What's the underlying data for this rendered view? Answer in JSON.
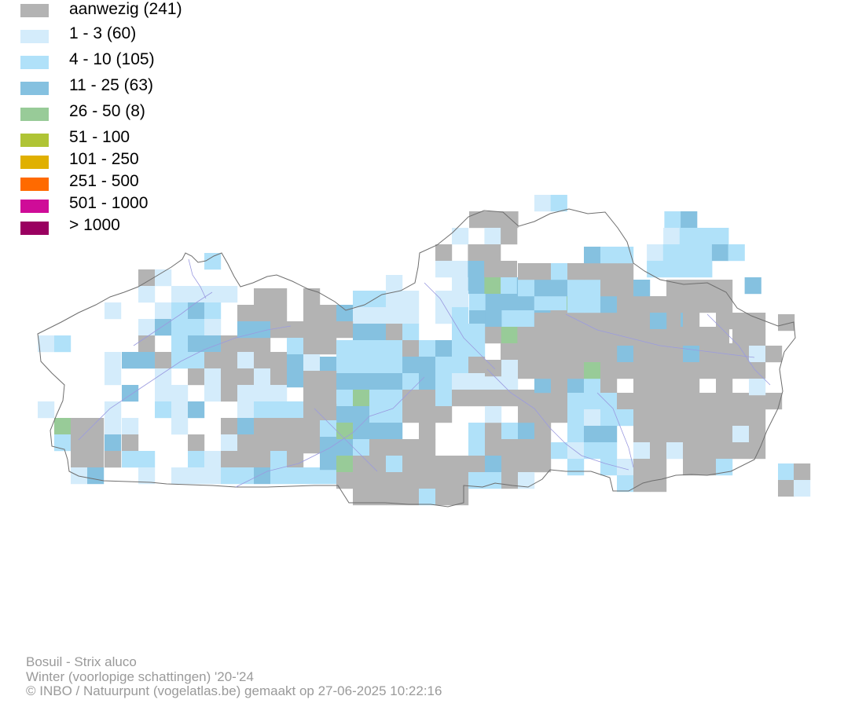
{
  "legend": {
    "items": [
      {
        "label": "aanwezig (241)",
        "color": "#b3b3b3"
      },
      {
        "label": "1 - 3 (60)",
        "color": "#d4ecfb"
      },
      {
        "label": "4 - 10 (105)",
        "color": "#b0e1f9"
      },
      {
        "label": "11 - 25 (63)",
        "color": "#85c1e0"
      },
      {
        "label": "26 - 50 (8)",
        "color": "#98cb98"
      },
      {
        "label": "51 - 100",
        "color": "#afc435"
      },
      {
        "label": "101 - 250",
        "color": "#e0b000"
      },
      {
        "label": "251 - 500",
        "color": "#ff6a00"
      },
      {
        "label": "501 - 1000",
        "color": "#cf0c98"
      },
      {
        "label": "> 1000",
        "color": "#9a0060"
      }
    ]
  },
  "map": {
    "colors": {
      "border": "#6e6e6e",
      "river": "#9a9ae0"
    }
  },
  "footer": {
    "species": "Bosuil - Strix aluco",
    "season": "Winter (voorlopige schattingen) '20-'24",
    "credit": "© INBO / Natuurpunt (vogelatlas.be) gemaakt op 27-06-2025 10:22:16"
  }
}
